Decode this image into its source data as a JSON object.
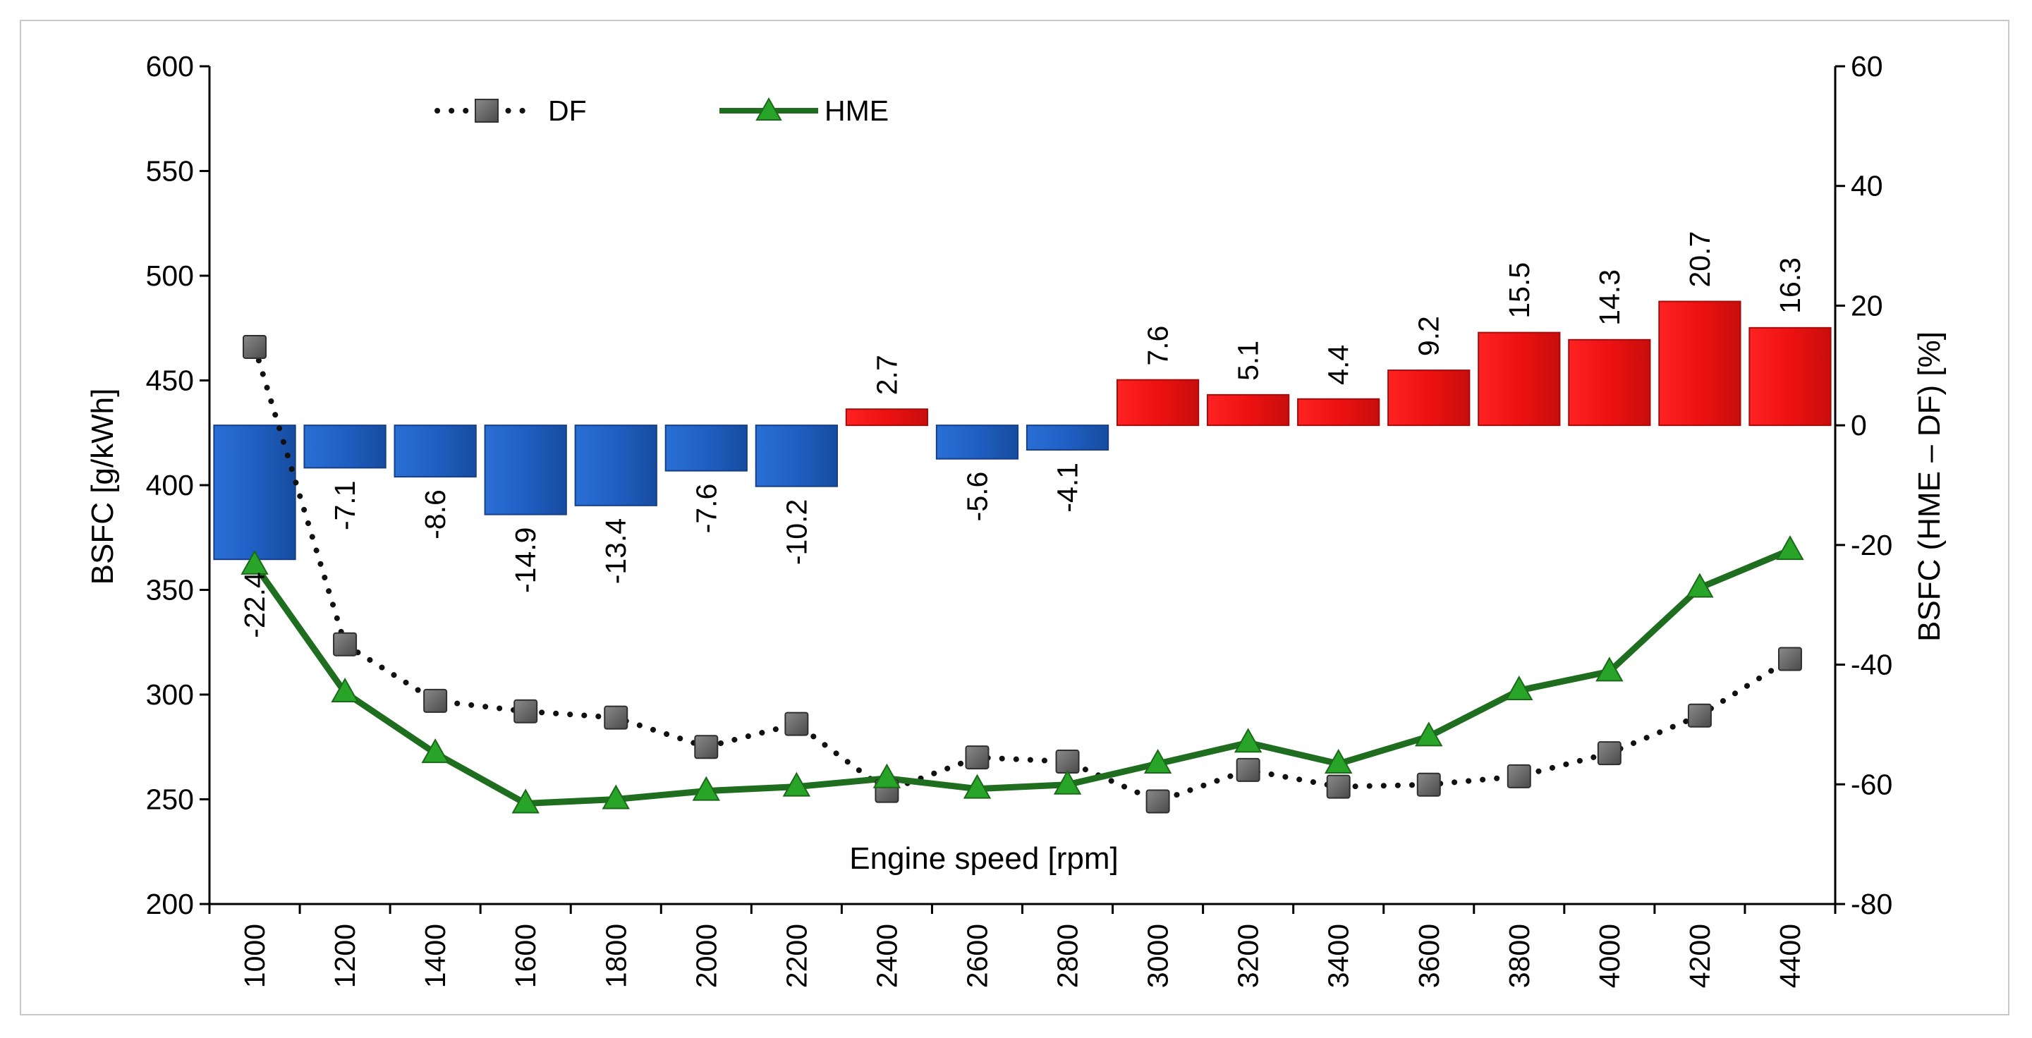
{
  "chart_data": {
    "type": "bar+line",
    "xlabel": "Engine speed [rpm]",
    "ylabel": "BSFC [g/kWh]",
    "y2label": "BSFC (HME – DF) [%]",
    "categories": [
      "1000",
      "1200",
      "1400",
      "1600",
      "1800",
      "2000",
      "2200",
      "2400",
      "2600",
      "2800",
      "3000",
      "3200",
      "3400",
      "3600",
      "3800",
      "4000",
      "4200",
      "4400"
    ],
    "ylim": [
      200,
      600
    ],
    "yticks": [
      "200",
      "250",
      "300",
      "350",
      "400",
      "450",
      "500",
      "550",
      "600"
    ],
    "y2lim": [
      -80,
      60
    ],
    "y2ticks": [
      "-80",
      "-60",
      "-40",
      "-20",
      "0",
      "20",
      "40",
      "60"
    ],
    "legend": [
      {
        "name": "DF",
        "style": "dotted line with square markers"
      },
      {
        "name": "HME",
        "style": "solid line with triangle markers"
      }
    ],
    "series": [
      {
        "name": "DF",
        "axis": "left",
        "type": "line",
        "values": [
          466,
          324,
          297,
          292,
          289,
          275,
          286,
          254,
          270,
          268,
          249,
          264,
          256,
          257,
          261,
          272,
          290,
          317
        ]
      },
      {
        "name": "HME",
        "axis": "left",
        "type": "line",
        "values": [
          362,
          301,
          272,
          248,
          250,
          254,
          256,
          260,
          255,
          257,
          267,
          277,
          267,
          280,
          302,
          311,
          351,
          369
        ]
      },
      {
        "name": "BSFC (HME – DF)",
        "axis": "right",
        "type": "bar",
        "values": [
          -22.4,
          -7.1,
          -8.6,
          -14.9,
          -13.4,
          -7.6,
          -10.2,
          2.7,
          -5.6,
          -4.1,
          7.6,
          5.1,
          4.4,
          9.2,
          15.5,
          14.3,
          20.7,
          16.3
        ],
        "labels": [
          "-22.4",
          "-7.1",
          "-8.6",
          "-14.9",
          "-13.4",
          "-7.6",
          "-10.2",
          "2.7",
          "-5.6",
          "-4.1",
          "7.6",
          "5.1",
          "4.4",
          "9.2",
          "15.5",
          "14.3",
          "20.7",
          "16.3"
        ]
      }
    ],
    "colors": {
      "negative_bar": "#1f5fc4",
      "positive_bar": "#ee1111",
      "bar_edge_neg": "#173f86",
      "bar_edge_pos": "#a30d0d",
      "hme_line": "#1f6e1f",
      "hme_marker": "#28a428",
      "df_line": "#111111",
      "df_marker": "#6b6b6b"
    }
  }
}
